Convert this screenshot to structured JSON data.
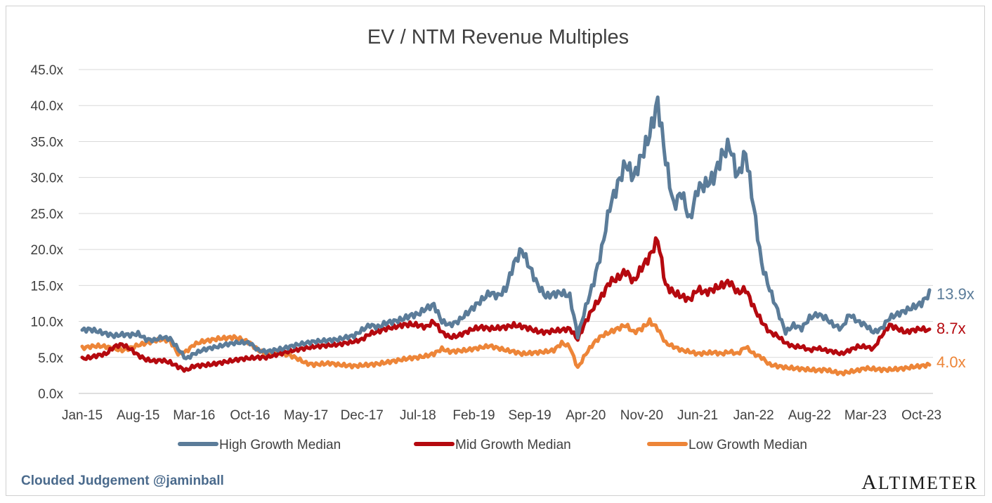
{
  "footer": {
    "credit": "Clouded Judgement @jaminball",
    "brand": "Altimeter"
  },
  "chart_data": {
    "type": "line",
    "title": "EV / NTM Revenue Multiples",
    "xlabel": "",
    "ylabel": "",
    "ylim": [
      0,
      45
    ],
    "y_ticks": [
      0,
      5,
      10,
      15,
      20,
      25,
      30,
      35,
      40,
      45
    ],
    "y_tick_labels": [
      "0.0x",
      "5.0x",
      "10.0x",
      "15.0x",
      "20.0x",
      "25.0x",
      "30.0x",
      "35.0x",
      "40.0x",
      "45.0x"
    ],
    "x_tick_labels": [
      "Jan-15",
      "Aug-15",
      "Mar-16",
      "Oct-16",
      "May-17",
      "Dec-17",
      "Jul-18",
      "Feb-19",
      "Sep-19",
      "Apr-20",
      "Nov-20",
      "Jun-21",
      "Jan-22",
      "Aug-22",
      "Mar-23",
      "Oct-23"
    ],
    "grid": true,
    "legend_position": "bottom",
    "x": [
      "2015-01",
      "2015-02",
      "2015-03",
      "2015-04",
      "2015-05",
      "2015-06",
      "2015-07",
      "2015-08",
      "2015-09",
      "2015-10",
      "2015-11",
      "2015-12",
      "2016-01",
      "2016-02",
      "2016-03",
      "2016-04",
      "2016-05",
      "2016-06",
      "2016-07",
      "2016-08",
      "2016-09",
      "2016-10",
      "2016-11",
      "2016-12",
      "2017-01",
      "2017-02",
      "2017-03",
      "2017-04",
      "2017-05",
      "2017-06",
      "2017-07",
      "2017-08",
      "2017-09",
      "2017-10",
      "2017-11",
      "2017-12",
      "2018-01",
      "2018-02",
      "2018-03",
      "2018-04",
      "2018-05",
      "2018-06",
      "2018-07",
      "2018-08",
      "2018-09",
      "2018-10",
      "2018-11",
      "2018-12",
      "2019-01",
      "2019-02",
      "2019-03",
      "2019-04",
      "2019-05",
      "2019-06",
      "2019-07",
      "2019-08",
      "2019-09",
      "2019-10",
      "2019-11",
      "2019-12",
      "2020-01",
      "2020-02",
      "2020-03",
      "2020-04",
      "2020-05",
      "2020-06",
      "2020-07",
      "2020-08",
      "2020-09",
      "2020-10",
      "2020-11",
      "2020-12",
      "2021-01",
      "2021-02",
      "2021-03",
      "2021-04",
      "2021-05",
      "2021-06",
      "2021-07",
      "2021-08",
      "2021-09",
      "2021-10",
      "2021-11",
      "2021-12",
      "2022-01",
      "2022-02",
      "2022-03",
      "2022-04",
      "2022-05",
      "2022-06",
      "2022-07",
      "2022-08",
      "2022-09",
      "2022-10",
      "2022-11",
      "2022-12",
      "2023-01",
      "2023-02",
      "2023-03",
      "2023-04",
      "2023-05",
      "2023-06",
      "2023-07",
      "2023-08",
      "2023-09",
      "2023-10",
      "2023-11"
    ],
    "series": [
      {
        "name": "High Growth Median",
        "color": "#5b7c99",
        "end_label": "13.9x",
        "values": [
          8.8,
          8.9,
          8.6,
          8.3,
          8.0,
          8.2,
          8.1,
          8.3,
          7.5,
          7.4,
          7.8,
          7.6,
          6.2,
          4.8,
          5.5,
          6.0,
          6.3,
          6.5,
          6.8,
          7.0,
          7.1,
          7.0,
          6.0,
          5.8,
          6.0,
          6.2,
          6.5,
          6.8,
          7.0,
          7.2,
          7.3,
          7.4,
          7.5,
          7.8,
          8.0,
          8.8,
          9.5,
          9.2,
          9.8,
          10.0,
          10.3,
          10.8,
          11.0,
          11.8,
          12.3,
          10.0,
          9.5,
          10.0,
          11.0,
          12.0,
          13.0,
          14.0,
          13.5,
          14.5,
          18.0,
          20.0,
          17.5,
          15.0,
          13.5,
          13.8,
          14.0,
          13.5,
          8.0,
          12.0,
          15.5,
          20.0,
          26.0,
          29.0,
          32.0,
          30.0,
          33.0,
          36.0,
          40.5,
          32.5,
          26.0,
          28.0,
          24.0,
          28.5,
          29.0,
          30.0,
          33.0,
          34.5,
          30.0,
          33.5,
          26.0,
          18.0,
          14.5,
          11.5,
          8.5,
          9.5,
          9.0,
          10.5,
          11.0,
          10.5,
          9.5,
          9.0,
          11.0,
          10.0,
          9.5,
          8.5,
          9.0,
          10.5,
          11.0,
          11.5,
          12.0,
          12.5,
          13.9
        ]
      },
      {
        "name": "Mid Growth Median",
        "color": "#b5090f",
        "end_label": "8.7x",
        "values": [
          4.8,
          5.0,
          5.3,
          5.5,
          6.5,
          6.8,
          6.2,
          5.3,
          4.7,
          4.5,
          4.6,
          4.3,
          3.7,
          3.2,
          3.8,
          3.9,
          4.0,
          4.2,
          4.4,
          4.6,
          4.8,
          4.9,
          5.0,
          5.0,
          5.3,
          5.6,
          5.9,
          6.1,
          6.3,
          6.5,
          6.6,
          6.7,
          6.8,
          7.0,
          7.2,
          7.5,
          8.3,
          8.6,
          9.0,
          9.2,
          9.5,
          9.6,
          9.5,
          9.2,
          10.0,
          8.5,
          7.8,
          8.0,
          8.5,
          9.0,
          9.2,
          9.0,
          9.1,
          9.2,
          9.5,
          9.3,
          9.0,
          8.6,
          8.5,
          8.7,
          8.8,
          9.0,
          7.5,
          10.0,
          12.0,
          13.5,
          15.5,
          16.0,
          17.0,
          15.5,
          17.5,
          19.0,
          21.5,
          15.0,
          14.0,
          13.5,
          13.0,
          14.5,
          14.0,
          14.5,
          15.0,
          15.5,
          14.0,
          14.5,
          12.0,
          10.0,
          8.5,
          8.0,
          7.0,
          6.5,
          6.5,
          6.0,
          6.3,
          6.0,
          5.8,
          5.5,
          6.0,
          6.5,
          6.5,
          6.2,
          8.0,
          9.5,
          9.0,
          8.5,
          8.8,
          9.0,
          8.7
        ]
      },
      {
        "name": "Low Growth Median",
        "color": "#ed8538",
        "end_label": "4.0x",
        "values": [
          6.3,
          6.5,
          6.6,
          6.5,
          6.2,
          6.0,
          6.3,
          6.7,
          7.0,
          7.3,
          7.5,
          7.3,
          5.5,
          5.8,
          6.8,
          7.2,
          7.4,
          7.6,
          7.7,
          7.8,
          7.5,
          7.0,
          6.0,
          5.5,
          5.6,
          5.5,
          5.3,
          4.8,
          4.2,
          4.0,
          4.1,
          4.2,
          4.0,
          3.9,
          3.8,
          3.9,
          4.0,
          4.1,
          4.3,
          4.5,
          4.7,
          4.9,
          5.0,
          5.2,
          5.5,
          6.2,
          5.8,
          5.9,
          6.0,
          6.2,
          6.4,
          6.6,
          6.3,
          6.0,
          5.8,
          5.5,
          5.6,
          5.7,
          5.8,
          6.0,
          7.0,
          6.5,
          3.5,
          5.5,
          7.0,
          8.0,
          8.5,
          9.0,
          9.5,
          8.5,
          9.0,
          10.0,
          9.0,
          7.0,
          6.5,
          6.0,
          5.8,
          5.5,
          5.6,
          5.7,
          5.5,
          5.8,
          5.5,
          6.5,
          5.5,
          5.0,
          4.0,
          3.8,
          3.6,
          3.5,
          3.4,
          3.3,
          3.2,
          3.3,
          3.0,
          2.8,
          3.0,
          3.2,
          3.5,
          3.4,
          3.3,
          3.3,
          3.4,
          3.5,
          3.7,
          3.8,
          4.0
        ]
      }
    ]
  }
}
